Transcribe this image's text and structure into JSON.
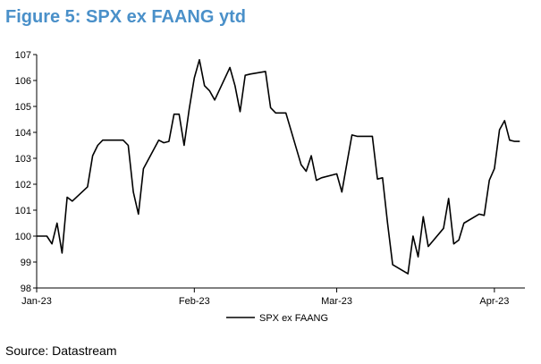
{
  "figure": {
    "title": "Figure 5: SPX ex FAANG ytd",
    "source": "Source: Datastream"
  },
  "chart_data": {
    "type": "line",
    "title": "",
    "xlabel": "",
    "ylabel": "",
    "ylim": [
      98,
      107
    ],
    "y_ticks": [
      98,
      99,
      100,
      101,
      102,
      103,
      104,
      105,
      106,
      107
    ],
    "x_ticks": [
      "Jan-23",
      "Feb-23",
      "Mar-23",
      "Apr-23"
    ],
    "x_tick_dates": [
      "2023-01-01",
      "2023-02-01",
      "2023-03-01",
      "2023-04-01"
    ],
    "xlim": [
      "2023-01-01",
      "2023-04-07"
    ],
    "grid": false,
    "legend_position": "bottom",
    "series": [
      {
        "name": "SPX ex FAANG",
        "color": "#000000",
        "x": [
          "2023-01-01",
          "2023-01-03",
          "2023-01-04",
          "2023-01-05",
          "2023-01-06",
          "2023-01-07",
          "2023-01-08",
          "2023-01-11",
          "2023-01-12",
          "2023-01-13",
          "2023-01-14",
          "2023-01-15",
          "2023-01-18",
          "2023-01-19",
          "2023-01-20",
          "2023-01-21",
          "2023-01-22",
          "2023-01-25",
          "2023-01-26",
          "2023-01-27",
          "2023-01-28",
          "2023-01-29",
          "2023-01-30",
          "2023-01-31",
          "2023-02-01",
          "2023-02-02",
          "2023-02-03",
          "2023-02-04",
          "2023-02-05",
          "2023-02-08",
          "2023-02-09",
          "2023-02-10",
          "2023-02-11",
          "2023-02-12",
          "2023-02-15",
          "2023-02-16",
          "2023-02-17",
          "2023-02-18",
          "2023-02-19",
          "2023-02-22",
          "2023-02-23",
          "2023-02-24",
          "2023-02-25",
          "2023-02-26",
          "2023-03-01",
          "2023-03-02",
          "2023-03-03",
          "2023-03-04",
          "2023-03-05",
          "2023-03-08",
          "2023-03-09",
          "2023-03-10",
          "2023-03-11",
          "2023-03-12",
          "2023-03-15",
          "2023-03-16",
          "2023-03-17",
          "2023-03-18",
          "2023-03-19",
          "2023-03-22",
          "2023-03-23",
          "2023-03-24",
          "2023-03-25",
          "2023-03-26",
          "2023-03-29",
          "2023-03-30",
          "2023-03-31",
          "2023-04-01",
          "2023-04-02",
          "2023-04-03",
          "2023-04-04",
          "2023-04-05",
          "2023-04-06"
        ],
        "values": [
          100.0,
          100.0,
          99.7,
          100.5,
          99.35,
          101.5,
          101.35,
          101.9,
          103.1,
          103.5,
          103.7,
          103.7,
          103.7,
          103.5,
          101.7,
          100.85,
          102.6,
          103.7,
          103.6,
          103.65,
          104.7,
          104.7,
          103.5,
          104.9,
          106.1,
          106.8,
          105.8,
          105.6,
          105.25,
          106.5,
          105.8,
          104.8,
          106.2,
          106.25,
          106.35,
          104.95,
          104.75,
          104.75,
          104.75,
          102.75,
          102.5,
          103.1,
          102.15,
          102.25,
          102.4,
          101.7,
          102.8,
          103.9,
          103.85,
          103.85,
          102.2,
          102.25,
          100.5,
          98.9,
          98.55,
          100.0,
          99.2,
          100.75,
          99.6,
          100.3,
          101.45,
          99.7,
          99.85,
          100.5,
          100.85,
          100.8,
          102.15,
          102.6,
          104.1,
          104.45,
          103.7,
          103.65,
          103.65
        ]
      }
    ]
  }
}
